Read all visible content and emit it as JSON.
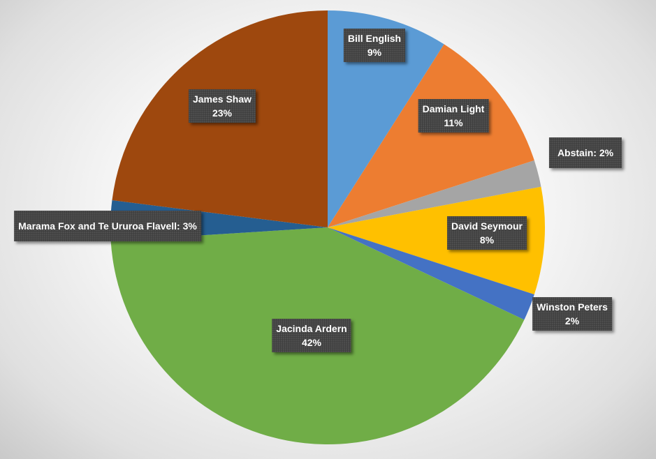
{
  "chart_data": {
    "type": "pie",
    "title": "",
    "slices": [
      {
        "name": "Bill English",
        "value": 9,
        "label": "9%",
        "color": "#5b9bd5"
      },
      {
        "name": "Damian Light",
        "value": 11,
        "label": "11%",
        "color": "#ed7d31"
      },
      {
        "name": "Abstain",
        "value": 2,
        "label": "2%",
        "color": "#a5a5a5"
      },
      {
        "name": "David Seymour",
        "value": 8,
        "label": "8%",
        "color": "#ffc000"
      },
      {
        "name": "Winston Peters",
        "value": 2,
        "label": "2%",
        "color": "#4472c4"
      },
      {
        "name": "Jacinda Ardern",
        "value": 42,
        "label": "42%",
        "color": "#70ad47"
      },
      {
        "name": "Marama Fox and Te Ururoa Flavell",
        "value": 3,
        "label": "3%",
        "color": "#255e91"
      },
      {
        "name": "James Shaw",
        "value": 23,
        "label": "23%",
        "color": "#9e480e"
      }
    ],
    "labels": {
      "bill_english": {
        "name": "Bill English",
        "pct": "9%"
      },
      "damian_light": {
        "name": "Damian Light",
        "pct": "11%"
      },
      "abstain": {
        "text": "Abstain: 2%"
      },
      "david_seymour": {
        "name": "David Seymour",
        "pct": "8%"
      },
      "winston_peters": {
        "name": "Winston Peters",
        "pct": "2%"
      },
      "jacinda_ardern": {
        "name": "Jacinda Ardern",
        "pct": "42%"
      },
      "marama_fox": {
        "text": "Marama Fox and Te Ururoa Flavell: 3%"
      },
      "james_shaw": {
        "name": "James Shaw",
        "pct": "23%"
      }
    }
  }
}
